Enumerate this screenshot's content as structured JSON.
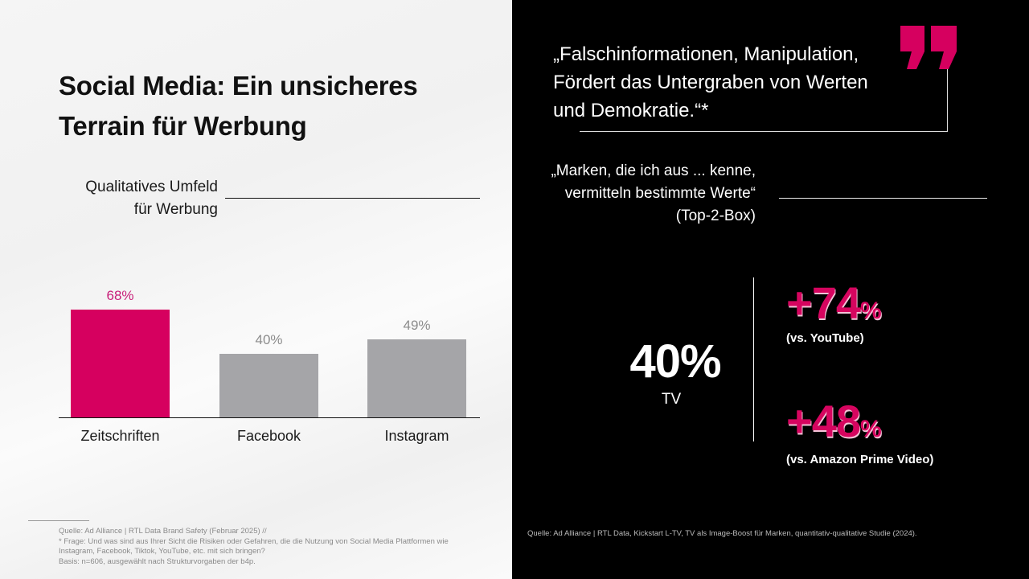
{
  "title": "Social Media: Ein unsicheres Terrain für Werbung",
  "title_lines": [
    "Social Media: Ein unsicheres",
    "Terrain für Werbung"
  ],
  "left": {
    "section_label_lines": [
      "Qualitatives Umfeld",
      "für Werbung"
    ],
    "footnotes": [
      "Quelle: Ad Alliance | RTL Data Brand Safety (Februar 2025) //",
      "* Frage: Und was sind aus Ihrer Sicht die Risiken oder Gefahren, die die Nutzung von Social Media Plattformen wie",
      "Instagram, Facebook, Tiktok, YouTube, etc. mit sich bringen?",
      "Basis: n=606, ausgewählt nach Strukturvorgaben der b4p."
    ]
  },
  "chart_data": {
    "type": "bar",
    "title": "Qualitatives Umfeld für Werbung",
    "xlabel": "",
    "ylabel": "",
    "ylim": [
      0,
      100
    ],
    "grid": false,
    "categories": [
      "Zeitschriften",
      "Facebook",
      "Instagram"
    ],
    "values": [
      68,
      40,
      49
    ],
    "value_labels": [
      "68%",
      "40%",
      "49%"
    ],
    "unit": "%",
    "colors": [
      "#d6005f",
      "#a5a5a8",
      "#a5a5a8"
    ],
    "label_colors": [
      "#c8207a",
      "#8c8c8c",
      "#8c8c8c"
    ]
  },
  "right": {
    "quote1_lines": [
      "„Falschinformationen, Manipulation,",
      "Fördert das Untergraben von Werten",
      "und Demokratie.“*"
    ],
    "quote_icon": "closing-quote-icon",
    "quote2_lines": [
      "„Marken, die ich aus ... kenne,",
      "vermitteln bestimmte Werte“",
      "(Top-2-Box)"
    ],
    "big_stat": {
      "value": "40%",
      "label": "TV"
    },
    "comparisons": [
      {
        "value": "+74",
        "unit": "%",
        "label": "(vs. YouTube)"
      },
      {
        "value": "+48",
        "unit": "%",
        "label": "(vs. Amazon Prime Video)"
      }
    ],
    "footnote": "Quelle: Ad Alliance | RTL Data, Kickstart L-TV, TV als Image-Boost für Marken, quantitativ-qualitative Studie (2024)."
  },
  "colors": {
    "accent": "#d6005f",
    "gray_bar": "#a5a5a8",
    "dark_bg": "#000000"
  }
}
